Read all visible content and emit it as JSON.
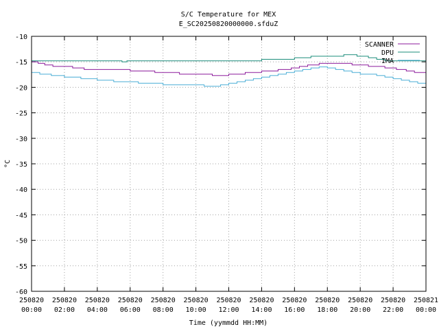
{
  "chart_data": {
    "type": "line",
    "title": "S/C Temperature for MEX",
    "subtitle": "E_SC20250820000000.sfduZ",
    "xlabel": "Time (yymmdd HH:MM)",
    "ylabel": "°C",
    "ylim": [
      -60,
      -10
    ],
    "yticks": [
      -10,
      -15,
      -20,
      -25,
      -30,
      -35,
      -40,
      -45,
      -50,
      -55,
      -60
    ],
    "xlim": [
      0,
      24
    ],
    "xticks": [
      {
        "x": 0,
        "line1": "250820",
        "line2": "00:00"
      },
      {
        "x": 2,
        "line1": "250820",
        "line2": "02:00"
      },
      {
        "x": 4,
        "line1": "250820",
        "line2": "04:00"
      },
      {
        "x": 6,
        "line1": "250820",
        "line2": "06:00"
      },
      {
        "x": 8,
        "line1": "250820",
        "line2": "08:00"
      },
      {
        "x": 10,
        "line1": "250820",
        "line2": "10:00"
      },
      {
        "x": 12,
        "line1": "250820",
        "line2": "12:00"
      },
      {
        "x": 14,
        "line1": "250820",
        "line2": "14:00"
      },
      {
        "x": 16,
        "line1": "250820",
        "line2": "16:00"
      },
      {
        "x": 18,
        "line1": "250820",
        "line2": "18:00"
      },
      {
        "x": 20,
        "line1": "250820",
        "line2": "20:00"
      },
      {
        "x": 22,
        "line1": "250820",
        "line2": "22:00"
      },
      {
        "x": 24,
        "line1": "250821",
        "line2": "00:00"
      }
    ],
    "grid": true,
    "legend_position": "top-right",
    "series": [
      {
        "name": "SCANNER",
        "color": "#8b1a9b",
        "points": [
          [
            0,
            -15.0
          ],
          [
            0.4,
            -15.3
          ],
          [
            0.8,
            -15.6
          ],
          [
            1.3,
            -15.9
          ],
          [
            2.5,
            -16.2
          ],
          [
            3.2,
            -16.5
          ],
          [
            6.0,
            -16.8
          ],
          [
            7.5,
            -17.1
          ],
          [
            9.0,
            -17.4
          ],
          [
            11.0,
            -17.7
          ],
          [
            12.0,
            -17.4
          ],
          [
            13.0,
            -17.1
          ],
          [
            14.0,
            -16.8
          ],
          [
            15.0,
            -16.5
          ],
          [
            15.8,
            -16.2
          ],
          [
            16.3,
            -15.9
          ],
          [
            16.8,
            -15.6
          ],
          [
            17.5,
            -15.3
          ],
          [
            19.5,
            -15.6
          ],
          [
            20.5,
            -15.9
          ],
          [
            21.5,
            -16.2
          ],
          [
            22.2,
            -16.5
          ],
          [
            22.8,
            -16.8
          ],
          [
            23.3,
            -17.1
          ],
          [
            24,
            -17.1
          ]
        ]
      },
      {
        "name": "DPU",
        "color": "#1a8c7a",
        "points": [
          [
            0,
            -14.8
          ],
          [
            5.3,
            -14.8
          ],
          [
            5.5,
            -15.0
          ],
          [
            5.8,
            -14.8
          ],
          [
            13.5,
            -14.8
          ],
          [
            14.0,
            -14.5
          ],
          [
            16.0,
            -14.2
          ],
          [
            17.0,
            -13.9
          ],
          [
            19.0,
            -13.6
          ],
          [
            19.8,
            -13.9
          ],
          [
            20.5,
            -14.2
          ],
          [
            21.0,
            -14.5
          ],
          [
            21.5,
            -14.8
          ],
          [
            24,
            -14.8
          ]
        ]
      },
      {
        "name": "IMA",
        "color": "#4aaed6",
        "points": [
          [
            0,
            -17.1
          ],
          [
            0.5,
            -17.4
          ],
          [
            1.2,
            -17.7
          ],
          [
            2.0,
            -18.0
          ],
          [
            3.0,
            -18.3
          ],
          [
            4.0,
            -18.6
          ],
          [
            5.0,
            -18.9
          ],
          [
            6.5,
            -19.2
          ],
          [
            8.0,
            -19.5
          ],
          [
            10.5,
            -19.8
          ],
          [
            11.5,
            -19.5
          ],
          [
            12.0,
            -19.2
          ],
          [
            12.5,
            -18.9
          ],
          [
            13.0,
            -18.6
          ],
          [
            13.5,
            -18.3
          ],
          [
            14.0,
            -18.0
          ],
          [
            14.5,
            -17.7
          ],
          [
            15.0,
            -17.4
          ],
          [
            15.5,
            -17.1
          ],
          [
            16.0,
            -16.8
          ],
          [
            16.5,
            -16.5
          ],
          [
            17.0,
            -16.2
          ],
          [
            17.5,
            -16.0
          ],
          [
            18.0,
            -16.2
          ],
          [
            18.5,
            -16.5
          ],
          [
            19.0,
            -16.8
          ],
          [
            19.5,
            -17.1
          ],
          [
            20.0,
            -17.4
          ],
          [
            21.0,
            -17.7
          ],
          [
            21.5,
            -18.0
          ],
          [
            22.0,
            -18.3
          ],
          [
            22.5,
            -18.6
          ],
          [
            23.0,
            -18.9
          ],
          [
            23.5,
            -19.2
          ],
          [
            24,
            -19.2
          ]
        ]
      }
    ]
  }
}
